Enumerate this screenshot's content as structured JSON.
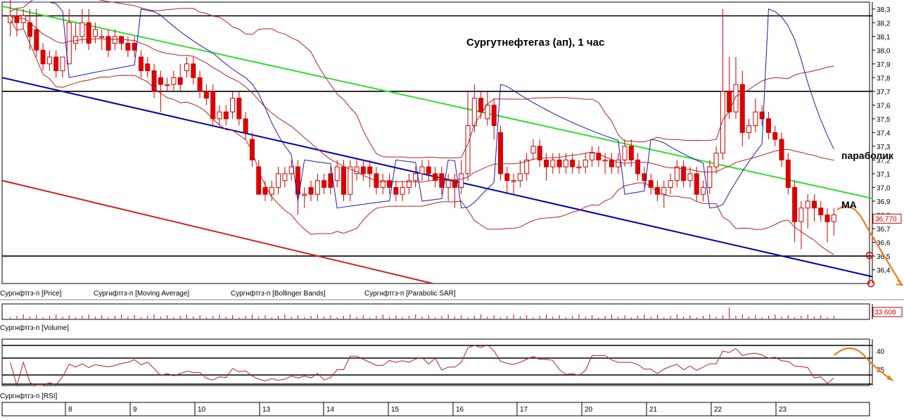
{
  "chart_data": {
    "type": "candlestick",
    "title": "Сургутнефтегаз (ап),   1 час",
    "price_axis": {
      "ylim": [
        36.3,
        38.35
      ],
      "ticks": [
        "38,3",
        "38,2",
        "38,1",
        "38,0",
        "37,9",
        "37,8",
        "37,7",
        "37,6",
        "37,5",
        "37,4",
        "37,3",
        "37,2",
        "37,1",
        "37,0",
        "36,9",
        "36,8",
        "36,7",
        "36,6",
        "36,5",
        "36,4"
      ]
    },
    "last_price_label": "36,770",
    "volume_label": "33 608",
    "rsi_ticks": [
      "40",
      "35"
    ],
    "x_axis": {
      "day_labels": [
        "8",
        "9",
        "10",
        "13",
        "14",
        "15",
        "16",
        "17",
        "20",
        "21",
        "22",
        "23"
      ]
    },
    "legend_price": [
      "Сургнфтгз-п [Price]",
      "Сургнфтгз-п [Moving Average]",
      "Сургнфтгз-п [Bollinger Bands]",
      "Сургнфтгз-п [Parabolic SAR]"
    ],
    "legend_volume": "Сургнфтгз-п [Volume]",
    "legend_rsi": "Сургнфтгз-п [RSI]",
    "annotations": {
      "parabolic": "параболик",
      "ma": "MA"
    },
    "horizontal_levels": [
      38.25,
      37.7,
      36.5
    ],
    "trendlines": [
      {
        "color": "#33dd33",
        "from": [
          0.0,
          38.32
        ],
        "to": [
          1.0,
          36.92
        ]
      },
      {
        "color": "#0000aa",
        "from": [
          0.0,
          37.8
        ],
        "to": [
          1.0,
          36.35
        ]
      },
      {
        "color": "#cc2222",
        "from": [
          0.0,
          37.05
        ],
        "to": [
          0.495,
          36.3
        ]
      }
    ],
    "candles": [
      {
        "o": 38.2,
        "c": 38.25,
        "h": 38.4,
        "l": 38.1
      },
      {
        "o": 38.25,
        "c": 38.2,
        "h": 38.3,
        "l": 38.1
      },
      {
        "o": 38.2,
        "c": 38.25,
        "h": 38.3,
        "l": 38.15
      },
      {
        "o": 38.2,
        "c": 38.1,
        "h": 38.3,
        "l": 38.0
      },
      {
        "o": 38.15,
        "c": 38.0,
        "h": 38.3,
        "l": 37.95
      },
      {
        "o": 38.0,
        "c": 37.9,
        "h": 38.05,
        "l": 37.85
      },
      {
        "o": 37.9,
        "c": 37.95,
        "h": 38.0,
        "l": 37.85
      },
      {
        "o": 37.95,
        "c": 37.85,
        "h": 38.0,
        "l": 37.8
      },
      {
        "o": 37.85,
        "c": 37.95,
        "h": 37.95,
        "l": 37.8
      },
      {
        "o": 37.9,
        "c": 38.2,
        "h": 38.3,
        "l": 37.9
      },
      {
        "o": 38.05,
        "c": 38.1,
        "h": 38.2,
        "l": 38.0
      },
      {
        "o": 38.1,
        "c": 38.2,
        "h": 38.3,
        "l": 38.05
      },
      {
        "o": 38.2,
        "c": 38.05,
        "h": 38.3,
        "l": 38.0
      },
      {
        "o": 38.1,
        "c": 38.15,
        "h": 38.2,
        "l": 38.05
      },
      {
        "o": 38.1,
        "c": 38.1,
        "h": 38.15,
        "l": 38.0
      },
      {
        "o": 38.1,
        "c": 38.0,
        "h": 38.15,
        "l": 37.95
      },
      {
        "o": 38.05,
        "c": 38.1,
        "h": 38.15,
        "l": 38.0
      },
      {
        "o": 38.1,
        "c": 38.05,
        "h": 38.1,
        "l": 38.0
      },
      {
        "o": 38.05,
        "c": 38.0,
        "h": 38.1,
        "l": 37.95
      },
      {
        "o": 38.05,
        "c": 38.0,
        "h": 38.1,
        "l": 37.95
      },
      {
        "o": 37.95,
        "c": 37.85,
        "h": 38.0,
        "l": 37.8
      },
      {
        "o": 37.9,
        "c": 37.85,
        "h": 37.95,
        "l": 37.8
      },
      {
        "o": 37.85,
        "c": 37.7,
        "h": 37.9,
        "l": 37.65
      },
      {
        "o": 37.8,
        "c": 37.75,
        "h": 37.85,
        "l": 37.55
      },
      {
        "o": 37.75,
        "c": 37.75,
        "h": 37.8,
        "l": 37.7
      },
      {
        "o": 37.75,
        "c": 37.8,
        "h": 37.85,
        "l": 37.7
      },
      {
        "o": 37.8,
        "c": 37.75,
        "h": 37.9,
        "l": 37.7
      },
      {
        "o": 37.85,
        "c": 37.9,
        "h": 37.95,
        "l": 37.8
      },
      {
        "o": 37.9,
        "c": 37.8,
        "h": 37.95,
        "l": 37.75
      },
      {
        "o": 37.8,
        "c": 37.7,
        "h": 37.85,
        "l": 37.65
      },
      {
        "o": 37.7,
        "c": 37.65,
        "h": 37.75,
        "l": 37.6
      },
      {
        "o": 37.7,
        "c": 37.5,
        "h": 37.75,
        "l": 37.45
      },
      {
        "o": 37.5,
        "c": 37.55,
        "h": 37.6,
        "l": 37.45
      },
      {
        "o": 37.55,
        "c": 37.5,
        "h": 37.6,
        "l": 37.45
      },
      {
        "o": 37.55,
        "c": 37.65,
        "h": 37.7,
        "l": 37.5
      },
      {
        "o": 37.65,
        "c": 37.5,
        "h": 37.7,
        "l": 37.45
      },
      {
        "o": 37.5,
        "c": 37.4,
        "h": 37.55,
        "l": 37.35
      },
      {
        "o": 37.35,
        "c": 37.2,
        "h": 37.4,
        "l": 37.15
      },
      {
        "o": 37.15,
        "c": 36.95,
        "h": 37.2,
        "l": 36.95
      },
      {
        "o": 37.0,
        "c": 36.95,
        "h": 37.05,
        "l": 36.9
      },
      {
        "o": 36.95,
        "c": 37.0,
        "h": 37.05,
        "l": 36.9
      },
      {
        "o": 37.0,
        "c": 37.1,
        "h": 37.15,
        "l": 36.95
      },
      {
        "o": 37.05,
        "c": 37.1,
        "h": 37.15,
        "l": 37.0
      },
      {
        "o": 37.1,
        "c": 37.15,
        "h": 37.2,
        "l": 37.05
      },
      {
        "o": 37.15,
        "c": 36.95,
        "h": 37.2,
        "l": 36.8
      },
      {
        "o": 36.95,
        "c": 36.95,
        "h": 37.0,
        "l": 36.85
      },
      {
        "o": 37.0,
        "c": 36.95,
        "h": 37.05,
        "l": 36.9
      },
      {
        "o": 36.95,
        "c": 37.05,
        "h": 37.1,
        "l": 36.9
      },
      {
        "o": 37.05,
        "c": 37.0,
        "h": 37.1,
        "l": 36.95
      },
      {
        "o": 37.1,
        "c": 37.0,
        "h": 37.15,
        "l": 36.95
      },
      {
        "o": 37.05,
        "c": 37.15,
        "h": 37.2,
        "l": 37.0
      },
      {
        "o": 37.15,
        "c": 36.95,
        "h": 37.2,
        "l": 36.9
      },
      {
        "o": 36.95,
        "c": 37.15,
        "h": 37.2,
        "l": 36.9
      },
      {
        "o": 37.1,
        "c": 37.15,
        "h": 37.2,
        "l": 37.05
      },
      {
        "o": 37.15,
        "c": 37.1,
        "h": 37.2,
        "l": 37.05
      },
      {
        "o": 37.15,
        "c": 37.1,
        "h": 37.2,
        "l": 37.0
      },
      {
        "o": 37.1,
        "c": 37.0,
        "h": 37.15,
        "l": 36.95
      },
      {
        "o": 37.0,
        "c": 37.05,
        "h": 37.1,
        "l": 36.95
      },
      {
        "o": 37.05,
        "c": 37.0,
        "h": 37.1,
        "l": 36.95
      },
      {
        "o": 37.0,
        "c": 36.95,
        "h": 37.05,
        "l": 36.9
      },
      {
        "o": 36.95,
        "c": 37.0,
        "h": 37.05,
        "l": 36.9
      },
      {
        "o": 37.0,
        "c": 37.05,
        "h": 37.1,
        "l": 36.95
      },
      {
        "o": 37.05,
        "c": 37.1,
        "h": 37.15,
        "l": 37.0
      },
      {
        "o": 37.1,
        "c": 37.15,
        "h": 37.2,
        "l": 37.05
      },
      {
        "o": 37.15,
        "c": 37.1,
        "h": 37.2,
        "l": 37.05
      },
      {
        "o": 37.1,
        "c": 37.05,
        "h": 37.15,
        "l": 37.0
      },
      {
        "o": 37.1,
        "c": 37.0,
        "h": 37.15,
        "l": 36.95
      },
      {
        "o": 37.0,
        "c": 37.05,
        "h": 37.1,
        "l": 36.9
      },
      {
        "o": 37.05,
        "c": 37.0,
        "h": 37.1,
        "l": 36.85
      },
      {
        "o": 37.0,
        "c": 37.1,
        "h": 37.2,
        "l": 36.95
      },
      {
        "o": 37.1,
        "c": 37.45,
        "h": 37.7,
        "l": 37.05
      },
      {
        "o": 37.45,
        "c": 37.65,
        "h": 37.75,
        "l": 37.4
      },
      {
        "o": 37.65,
        "c": 37.55,
        "h": 37.7,
        "l": 37.5
      },
      {
        "o": 37.5,
        "c": 37.6,
        "h": 37.7,
        "l": 37.45
      },
      {
        "o": 37.6,
        "c": 37.45,
        "h": 37.65,
        "l": 37.35
      },
      {
        "o": 37.4,
        "c": 37.1,
        "h": 37.45,
        "l": 37.05
      },
      {
        "o": 37.1,
        "c": 37.05,
        "h": 37.15,
        "l": 36.95
      },
      {
        "o": 37.05,
        "c": 37.05,
        "h": 37.1,
        "l": 36.95
      },
      {
        "o": 37.05,
        "c": 37.1,
        "h": 37.2,
        "l": 37.0
      },
      {
        "o": 37.1,
        "c": 37.2,
        "h": 37.25,
        "l": 37.05
      },
      {
        "o": 37.25,
        "c": 37.3,
        "h": 37.35,
        "l": 37.2
      },
      {
        "o": 37.3,
        "c": 37.2,
        "h": 37.35,
        "l": 37.15
      },
      {
        "o": 37.2,
        "c": 37.15,
        "h": 37.25,
        "l": 37.05
      },
      {
        "o": 37.15,
        "c": 37.2,
        "h": 37.25,
        "l": 37.1
      },
      {
        "o": 37.2,
        "c": 37.15,
        "h": 37.25,
        "l": 37.1
      },
      {
        "o": 37.15,
        "c": 37.2,
        "h": 37.25,
        "l": 37.1
      },
      {
        "o": 37.2,
        "c": 37.15,
        "h": 37.25,
        "l": 37.1
      },
      {
        "o": 37.15,
        "c": 37.15,
        "h": 37.2,
        "l": 37.1
      },
      {
        "o": 37.15,
        "c": 37.2,
        "h": 37.25,
        "l": 37.1
      },
      {
        "o": 37.2,
        "c": 37.25,
        "h": 37.3,
        "l": 37.15
      },
      {
        "o": 37.25,
        "c": 37.2,
        "h": 37.3,
        "l": 37.15
      },
      {
        "o": 37.2,
        "c": 37.2,
        "h": 37.25,
        "l": 37.1
      },
      {
        "o": 37.2,
        "c": 37.15,
        "h": 37.25,
        "l": 37.1
      },
      {
        "o": 37.15,
        "c": 37.2,
        "h": 37.25,
        "l": 37.1
      },
      {
        "o": 37.2,
        "c": 37.3,
        "h": 37.35,
        "l": 37.15
      },
      {
        "o": 37.3,
        "c": 37.2,
        "h": 37.35,
        "l": 37.15
      },
      {
        "o": 37.2,
        "c": 37.1,
        "h": 37.25,
        "l": 37.05
      },
      {
        "o": 37.1,
        "c": 37.05,
        "h": 37.15,
        "l": 37.0
      },
      {
        "o": 37.05,
        "c": 37.0,
        "h": 37.1,
        "l": 36.95
      },
      {
        "o": 37.0,
        "c": 36.95,
        "h": 37.05,
        "l": 36.9
      },
      {
        "o": 36.95,
        "c": 37.0,
        "h": 37.05,
        "l": 36.85
      },
      {
        "o": 37.0,
        "c": 37.05,
        "h": 37.1,
        "l": 36.95
      },
      {
        "o": 37.05,
        "c": 37.15,
        "h": 37.2,
        "l": 37.0
      },
      {
        "o": 37.15,
        "c": 37.05,
        "h": 37.2,
        "l": 37.0
      },
      {
        "o": 37.05,
        "c": 37.1,
        "h": 37.15,
        "l": 37.0
      },
      {
        "o": 37.1,
        "c": 36.95,
        "h": 37.15,
        "l": 36.9
      },
      {
        "o": 36.95,
        "c": 37.0,
        "h": 37.05,
        "l": 36.9
      },
      {
        "o": 37.0,
        "c": 37.15,
        "h": 37.2,
        "l": 36.95
      },
      {
        "o": 37.15,
        "c": 37.25,
        "h": 37.3,
        "l": 37.1
      },
      {
        "o": 37.25,
        "c": 37.7,
        "h": 38.3,
        "l": 37.2
      },
      {
        "o": 37.7,
        "c": 37.55,
        "h": 37.95,
        "l": 37.5
      },
      {
        "o": 37.55,
        "c": 37.75,
        "h": 37.95,
        "l": 37.5
      },
      {
        "o": 37.75,
        "c": 37.4,
        "h": 37.85,
        "l": 37.3
      },
      {
        "o": 37.4,
        "c": 37.45,
        "h": 37.5,
        "l": 37.35
      },
      {
        "o": 37.45,
        "c": 37.55,
        "h": 37.65,
        "l": 37.4
      },
      {
        "o": 37.55,
        "c": 37.5,
        "h": 37.6,
        "l": 37.45
      },
      {
        "o": 37.5,
        "c": 37.4,
        "h": 37.55,
        "l": 37.35
      },
      {
        "o": 37.4,
        "c": 37.35,
        "h": 37.45,
        "l": 37.3
      },
      {
        "o": 37.35,
        "c": 37.2,
        "h": 37.4,
        "l": 37.15
      },
      {
        "o": 37.2,
        "c": 37.0,
        "h": 37.25,
        "l": 36.95
      },
      {
        "o": 37.0,
        "c": 36.75,
        "h": 37.05,
        "l": 36.6
      },
      {
        "o": 36.75,
        "c": 36.85,
        "h": 36.9,
        "l": 36.55
      },
      {
        "o": 36.85,
        "c": 36.9,
        "h": 36.95,
        "l": 36.7
      },
      {
        "o": 36.9,
        "c": 36.85,
        "h": 36.95,
        "l": 36.75
      },
      {
        "o": 36.85,
        "c": 36.8,
        "h": 36.9,
        "l": 36.75
      },
      {
        "o": 36.8,
        "c": 36.75,
        "h": 36.85,
        "l": 36.6
      },
      {
        "o": 36.75,
        "c": 36.8,
        "h": 36.85,
        "l": 36.65
      }
    ]
  }
}
